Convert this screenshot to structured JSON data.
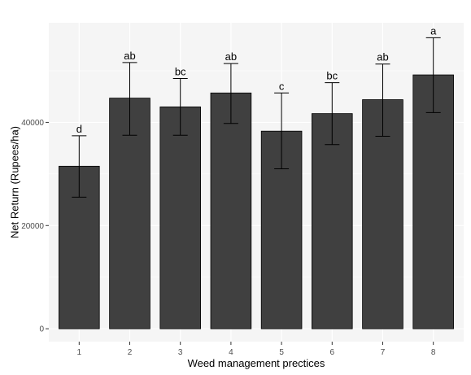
{
  "chart_data": {
    "type": "bar",
    "title": "",
    "xlabel": "Weed management prectices",
    "ylabel": "Net Return (Rupees/ha)",
    "categories": [
      "1",
      "2",
      "3",
      "4",
      "5",
      "6",
      "7",
      "8"
    ],
    "values": [
      31500,
      44700,
      43000,
      45700,
      38300,
      41700,
      44400,
      49200
    ],
    "error_low": [
      25500,
      37500,
      37500,
      39800,
      31000,
      35700,
      37300,
      41900
    ],
    "error_high": [
      37400,
      51600,
      48500,
      51400,
      45700,
      47700,
      51300,
      56400
    ],
    "significance_labels": [
      "d",
      "ab",
      "bc",
      "ab",
      "c",
      "bc",
      "ab",
      "a"
    ],
    "ylim": [
      -2500,
      59300
    ],
    "yticks": [
      0,
      20000,
      40000
    ],
    "ytick_labels": [
      "0",
      "20000",
      "40000"
    ],
    "grid": true,
    "colors": {
      "bar_fill": "#404040",
      "bar_stroke": "#000000",
      "panel_bg": "#f5f5f5",
      "grid_major": "#ffffff",
      "error_bar": "#000000"
    }
  }
}
